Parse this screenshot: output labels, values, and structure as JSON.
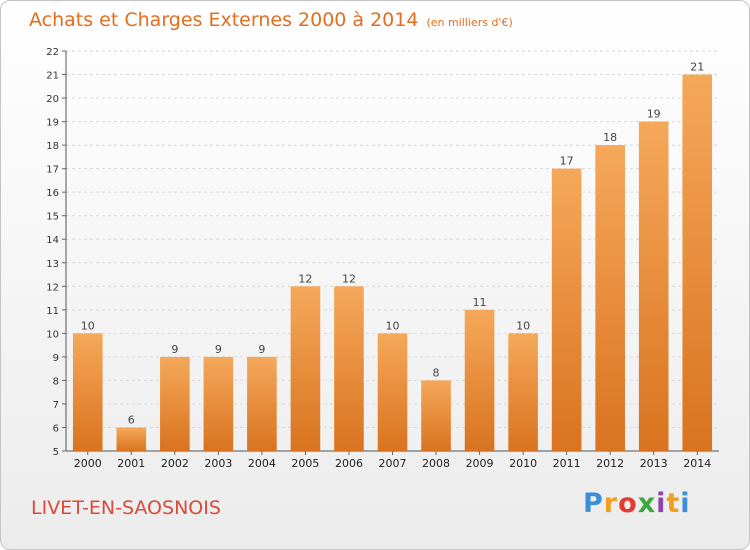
{
  "header": {
    "title": "Achats et Charges Externes 2000 à 2014",
    "unit": "(en milliers d'€)"
  },
  "footer": {
    "location": "LIVET-EN-SAOSNOIS",
    "logo_letters": [
      "P",
      "r",
      "o",
      "x",
      "i",
      "t",
      "i"
    ],
    "logo_colors": [
      "#3a8fd8",
      "#f0a020",
      "#e23a2e",
      "#3aa83a",
      "#8e44ad",
      "#f0a020",
      "#3a8fd8"
    ]
  },
  "colors": {
    "bar_light": "#f5a85a",
    "bar_dark": "#d9731f",
    "title": "#e46d1f"
  },
  "chart_data": {
    "type": "bar",
    "title": "Achats et Charges Externes 2000 à 2014",
    "subtitle": "(en milliers d'€)",
    "xlabel": "",
    "ylabel": "",
    "categories": [
      "2000",
      "2001",
      "2002",
      "2003",
      "2004",
      "2005",
      "2006",
      "2007",
      "2008",
      "2009",
      "2010",
      "2011",
      "2012",
      "2013",
      "2014"
    ],
    "values": [
      10,
      6,
      9,
      9,
      9,
      12,
      12,
      10,
      8,
      11,
      10,
      17,
      18,
      19,
      21
    ],
    "ylim": [
      5,
      22
    ],
    "yticks": [
      5,
      6,
      7,
      8,
      9,
      10,
      11,
      12,
      13,
      14,
      15,
      16,
      17,
      18,
      19,
      20,
      21,
      22
    ],
    "grid": true,
    "data_labels": true
  }
}
